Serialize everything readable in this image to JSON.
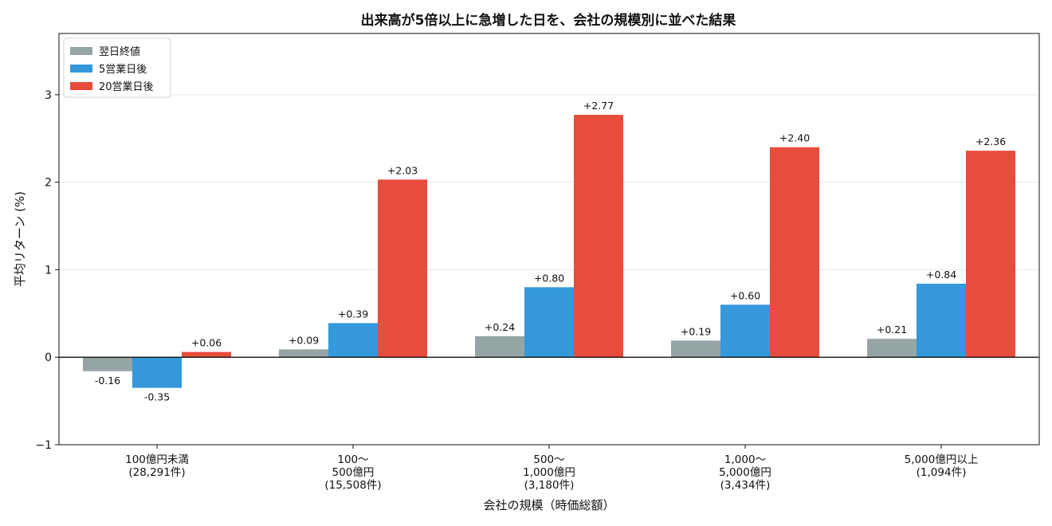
{
  "chart_data": {
    "type": "bar",
    "title": "出来高が5倍以上に急増した日を、会社の規模別に並べた結果",
    "xlabel": "会社の規模（時価総額）",
    "ylabel": "平均リターン (%)",
    "ylim": [
      -1.0,
      3.7
    ],
    "yticks": [
      -1,
      0,
      1,
      2,
      3
    ],
    "ytick_labels": [
      "−1",
      "0",
      "1",
      "2",
      "3"
    ],
    "grid": "horizontal",
    "legend_position": "top-left",
    "categories": [
      [
        "100億円未満",
        "(28,291件)"
      ],
      [
        "100～",
        "500億円",
        "(15,508件)"
      ],
      [
        "500～",
        "1,000億円",
        "(3,180件)"
      ],
      [
        "1,000～",
        "5,000億円",
        "(3,434件)"
      ],
      [
        "5,000億円以上",
        "(1,094件)"
      ]
    ],
    "series": [
      {
        "name": "翌日終値",
        "color": "#95a5a6",
        "values": [
          -0.16,
          0.09,
          0.24,
          0.19,
          0.21
        ],
        "labels": [
          "-0.16",
          "+0.09",
          "+0.24",
          "+0.19",
          "+0.21"
        ]
      },
      {
        "name": "5営業日後",
        "color": "#3498db",
        "values": [
          -0.35,
          0.39,
          0.8,
          0.6,
          0.84
        ],
        "labels": [
          "-0.35",
          "+0.39",
          "+0.80",
          "+0.60",
          "+0.84"
        ]
      },
      {
        "name": "20営業日後",
        "color": "#e74c3c",
        "values": [
          0.06,
          2.03,
          2.77,
          2.4,
          2.36
        ],
        "labels": [
          "+0.06",
          "+2.03",
          "+2.77",
          "+2.40",
          "+2.36"
        ]
      }
    ]
  }
}
